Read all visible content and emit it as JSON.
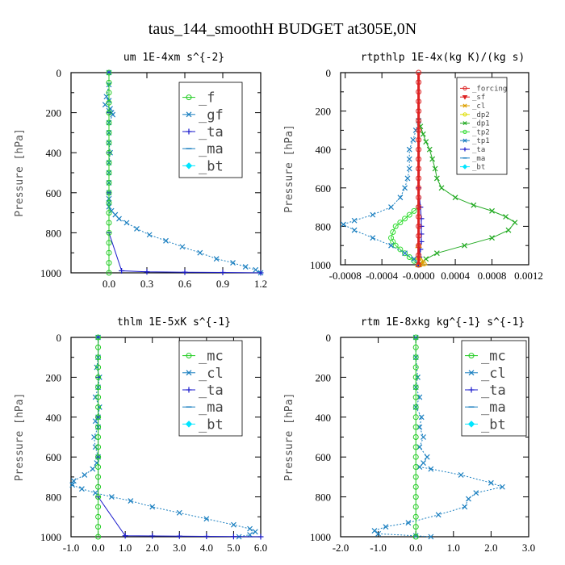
{
  "figure_title": "taus_144_smoothH  BUDGET at305E,0N",
  "colors": {
    "f": "#22cc22",
    "gf": "#1a7fc0",
    "ta": "#1a1acc",
    "ma": "#1a7fc0",
    "bt": "#00e5ff",
    "forcing": "#dd2222",
    "sf": "#dd2222",
    "cl": "#dda000",
    "dp2": "#dddd00",
    "dp1": "#22aa22",
    "tp2": "#33dd33",
    "tp1": "#1a7fc0",
    "mc": "#22cc22",
    "clb": "#1a7fc0"
  },
  "chart_data": [
    {
      "type": "line",
      "title": "um   1E-4xm s^{-2}",
      "ylabel": "Pressure [hPa]",
      "xlim": [
        -0.3,
        1.2
      ],
      "ylim": [
        1000,
        0
      ],
      "xticks": [
        "0.0",
        "0.3",
        "0.6",
        "0.9",
        "1.2"
      ],
      "xtick_values": [
        0,
        0.3,
        0.6,
        0.9,
        1.2
      ],
      "yticks": [
        "0",
        "200",
        "400",
        "600",
        "800",
        "1000"
      ],
      "ytick_values": [
        0,
        200,
        400,
        600,
        800,
        1000
      ],
      "legend_style": "large",
      "legend": [
        "_f",
        "_gf",
        "_ta",
        "_ma",
        "_bt"
      ],
      "series": [
        {
          "name": "_gf",
          "key": "gf",
          "marker": "x",
          "dashed": true,
          "x": [
            0.0,
            0.0,
            -0.02,
            0.0,
            -0.03,
            0.01,
            0.0,
            0.02,
            0.03,
            0.0,
            0.0,
            0.0,
            0.01,
            0.0,
            0.0,
            0.0,
            0.0,
            0.0,
            0.0,
            0.0,
            0.02,
            0.05,
            0.08,
            0.14,
            0.22,
            0.32,
            0.45,
            0.58,
            0.72,
            0.85,
            0.98,
            1.08,
            1.16,
            1.2
          ],
          "y": [
            0,
            60,
            120,
            140,
            160,
            180,
            190,
            200,
            210,
            250,
            300,
            350,
            400,
            450,
            500,
            550,
            600,
            630,
            650,
            670,
            690,
            710,
            730,
            750,
            780,
            810,
            840,
            870,
            900,
            930,
            950,
            970,
            985,
            1000
          ]
        },
        {
          "name": "_ta",
          "key": "ta",
          "marker": "+",
          "dashed": false,
          "x": [
            0.0,
            0.0,
            0.0,
            0.0,
            0.0,
            0.1,
            0.3,
            0.6,
            0.9,
            1.2
          ],
          "y": [
            0,
            200,
            400,
            600,
            800,
            990,
            995,
            997,
            998,
            1000
          ]
        },
        {
          "name": "_f",
          "key": "f",
          "marker": "o",
          "dashed": false,
          "x": [
            0.0,
            0.0,
            0.0,
            0.0,
            0.0,
            0.0,
            0.0,
            0.0,
            0.0,
            0.0,
            0.0,
            0.0,
            0.0,
            0.0,
            0.0,
            0.0,
            0.0,
            0.0,
            0.0,
            0.0,
            0.0
          ],
          "y": [
            0,
            50,
            100,
            150,
            200,
            250,
            300,
            350,
            400,
            450,
            500,
            550,
            600,
            650,
            700,
            750,
            800,
            850,
            900,
            950,
            1000
          ]
        }
      ]
    },
    {
      "type": "line",
      "title": "rtpthlp   1E-4x(kg K)/(kg s)",
      "ylabel": "Pressure [hPa]",
      "xlim": [
        -0.00085,
        0.0012
      ],
      "ylim": [
        1000,
        0
      ],
      "xticks": [
        "-0.0008",
        "-0.0004",
        "-0.0000",
        "0.0004",
        "0.0008",
        "0.0012"
      ],
      "xtick_values": [
        -0.0008,
        -0.0004,
        0,
        0.0004,
        0.0008,
        0.0012
      ],
      "yticks": [
        "0",
        "200",
        "400",
        "600",
        "800",
        "1000"
      ],
      "ytick_values": [
        0,
        200,
        400,
        600,
        800,
        1000
      ],
      "legend_style": "small",
      "legend": [
        "_forcing",
        "_sf",
        "_cl",
        "_dp2",
        "_dp1",
        "_tp2",
        "_tp1",
        "_ta",
        "_ma",
        "_bt"
      ],
      "series": [
        {
          "name": "_dp1",
          "key": "dp1",
          "marker": "x",
          "dashed": false,
          "x": [
            0.0,
            2e-05,
            5e-05,
            8e-05,
            0.00012,
            0.00015,
            0.00018,
            0.0002,
            0.00025,
            0.0004,
            0.0006,
            0.0008,
            0.00095,
            0.00105,
            0.00098,
            0.0008,
            0.0005,
            0.0002,
            8e-05,
            0.0
          ],
          "y": [
            250,
            280,
            320,
            360,
            400,
            450,
            500,
            550,
            600,
            650,
            690,
            720,
            750,
            780,
            820,
            860,
            900,
            940,
            970,
            1000
          ]
        },
        {
          "name": "_tp2",
          "key": "tp2",
          "marker": "o",
          "dashed": false,
          "x": [
            0.0,
            -5e-05,
            -0.0001,
            -0.00015,
            -0.0002,
            -0.00025,
            -0.00028,
            -0.0003,
            -0.00028,
            -0.00025,
            -0.0002,
            -0.00015,
            -0.0001,
            -5e-05,
            0.0
          ],
          "y": [
            700,
            720,
            740,
            760,
            780,
            800,
            830,
            860,
            880,
            900,
            920,
            940,
            960,
            980,
            1000
          ]
        },
        {
          "name": "_tp1",
          "key": "tp1",
          "marker": "x",
          "dashed": true,
          "x": [
            0.0,
            -3e-05,
            -6e-05,
            -0.0001,
            -0.0001,
            -0.0001,
            -0.00012,
            -0.00015,
            -0.0002,
            -0.0003,
            -0.0005,
            -0.0007,
            -0.00082,
            -0.0007,
            -0.0005,
            -0.0003,
            -0.00015,
            -5e-05,
            0.0
          ],
          "y": [
            250,
            300,
            350,
            400,
            450,
            500,
            550,
            600,
            650,
            700,
            740,
            770,
            790,
            820,
            860,
            900,
            940,
            970,
            1000
          ]
        },
        {
          "name": "_ta",
          "key": "ta",
          "marker": "+",
          "dashed": false,
          "x": [
            0.0,
            2e-05,
            3e-05,
            3e-05,
            3e-05,
            3e-05,
            2e-05,
            1e-05,
            0.0
          ],
          "y": [
            600,
            700,
            760,
            800,
            840,
            880,
            920,
            960,
            1000
          ]
        },
        {
          "name": "_cl",
          "key": "cl",
          "marker": "^",
          "dashed": false,
          "x": [
            0.0,
            0.0,
            3e-05,
            6e-05,
            4e-05,
            0.0
          ],
          "y": [
            900,
            960,
            980,
            990,
            995,
            1000
          ]
        },
        {
          "name": "_forcing",
          "key": "forcing",
          "marker": "o",
          "dashed": false,
          "thick": true,
          "x": [
            0.0,
            0.0,
            0.0,
            0.0,
            0.0,
            0.0,
            0.0,
            0.0,
            0.0,
            0.0,
            0.0,
            0.0,
            0.0,
            0.0,
            0.0,
            0.0,
            0.0,
            0.0,
            0.0,
            0.0,
            0.0
          ],
          "y": [
            0,
            50,
            100,
            150,
            200,
            250,
            300,
            350,
            400,
            450,
            500,
            550,
            600,
            650,
            700,
            750,
            800,
            850,
            900,
            950,
            1000
          ]
        }
      ]
    },
    {
      "type": "line",
      "title": "thlm   1E-5xK s^{-1}",
      "ylabel": "Pressure [hPa]",
      "xlim": [
        -1.0,
        6.0
      ],
      "ylim": [
        1000,
        0
      ],
      "xticks": [
        "-1.0",
        "0.0",
        "1.0",
        "2.0",
        "3.0",
        "4.0",
        "5.0",
        "6.0"
      ],
      "xtick_values": [
        -1,
        0,
        1,
        2,
        3,
        4,
        5,
        6
      ],
      "yticks": [
        "0",
        "200",
        "400",
        "600",
        "800",
        "1000"
      ],
      "ytick_values": [
        0,
        200,
        400,
        600,
        800,
        1000
      ],
      "legend_style": "large",
      "legend": [
        "_mc",
        "_cl",
        "_ta",
        "_ma",
        "_bt"
      ],
      "series": [
        {
          "name": "_cl",
          "key": "clb",
          "marker": "x",
          "dashed": true,
          "x": [
            0.0,
            0.0,
            -0.05,
            0.05,
            0.0,
            -0.1,
            0.05,
            0.0,
            -0.1,
            0.0,
            -0.15,
            -0.1,
            0.0,
            -0.05,
            -0.2,
            -0.5,
            -0.9,
            -0.95,
            -0.6,
            -0.1,
            0.5,
            1.2,
            2.0,
            3.0,
            4.0,
            5.0,
            5.6,
            5.8,
            5.6,
            5.2
          ],
          "y": [
            0,
            100,
            150,
            200,
            250,
            300,
            350,
            400,
            420,
            450,
            500,
            550,
            600,
            630,
            660,
            690,
            720,
            740,
            760,
            780,
            800,
            820,
            850,
            880,
            910,
            940,
            960,
            975,
            990,
            1000
          ]
        },
        {
          "name": "_ta",
          "key": "ta",
          "marker": "+",
          "dashed": false,
          "x": [
            0.0,
            0.0,
            0.0,
            0.0,
            0.0,
            1.0,
            2.0,
            3.0,
            4.0,
            5.0,
            6.0
          ],
          "y": [
            0,
            200,
            400,
            600,
            800,
            995,
            996,
            997,
            998,
            999,
            1000
          ]
        },
        {
          "name": "_mc",
          "key": "mc",
          "marker": "o",
          "dashed": false,
          "x": [
            0.0,
            0.0,
            0.0,
            0.0,
            0.0,
            0.0,
            0.0,
            0.0,
            0.0,
            0.0,
            0.0,
            0.0,
            0.0,
            0.0,
            0.0,
            0.0,
            0.0,
            0.0,
            0.0,
            0.0,
            0.0
          ],
          "y": [
            0,
            50,
            100,
            150,
            200,
            250,
            300,
            350,
            400,
            450,
            500,
            550,
            600,
            650,
            700,
            750,
            800,
            850,
            900,
            950,
            1000
          ]
        }
      ]
    },
    {
      "type": "line",
      "title": "rtm   1E-8xkg kg^{-1} s^{-1}",
      "ylabel": "Pressure [hPa]",
      "xlim": [
        -2.0,
        3.0
      ],
      "ylim": [
        1000,
        0
      ],
      "xticks": [
        "-2.0",
        "-1.0",
        "0.0",
        "1.0",
        "2.0",
        "3.0"
      ],
      "xtick_values": [
        -2,
        -1,
        0,
        1,
        2,
        3
      ],
      "yticks": [
        "0",
        "200",
        "400",
        "600",
        "800",
        "1000"
      ],
      "ytick_values": [
        0,
        200,
        400,
        600,
        800,
        1000
      ],
      "legend_style": "large",
      "legend": [
        "_mc",
        "_cl",
        "_ta",
        "_ma",
        "_bt"
      ],
      "series": [
        {
          "name": "_cl",
          "key": "clb",
          "marker": "x",
          "dashed": true,
          "x": [
            0.0,
            0.0,
            0.05,
            0.0,
            0.1,
            0.0,
            0.15,
            0.1,
            0.2,
            0.1,
            0.3,
            0.2,
            0.1,
            0.4,
            1.2,
            2.0,
            2.3,
            1.6,
            1.4,
            1.3,
            0.6,
            -0.2,
            -0.8,
            -1.1,
            -1.0,
            0.0,
            0.4
          ],
          "y": [
            0,
            100,
            200,
            250,
            300,
            350,
            400,
            450,
            500,
            550,
            600,
            630,
            650,
            660,
            690,
            730,
            750,
            780,
            810,
            850,
            890,
            930,
            950,
            970,
            985,
            995,
            1000
          ]
        },
        {
          "name": "_mc",
          "key": "mc",
          "marker": "o",
          "dashed": false,
          "x": [
            0.0,
            0.0,
            0.0,
            0.0,
            0.0,
            0.0,
            0.0,
            0.0,
            0.0,
            0.0,
            0.0,
            0.0,
            0.0,
            0.0,
            0.0,
            0.0,
            0.0,
            0.0,
            0.0,
            0.0,
            0.0
          ],
          "y": [
            0,
            50,
            100,
            150,
            200,
            250,
            300,
            350,
            400,
            450,
            500,
            550,
            600,
            650,
            700,
            750,
            800,
            850,
            900,
            950,
            1000
          ]
        }
      ]
    }
  ]
}
